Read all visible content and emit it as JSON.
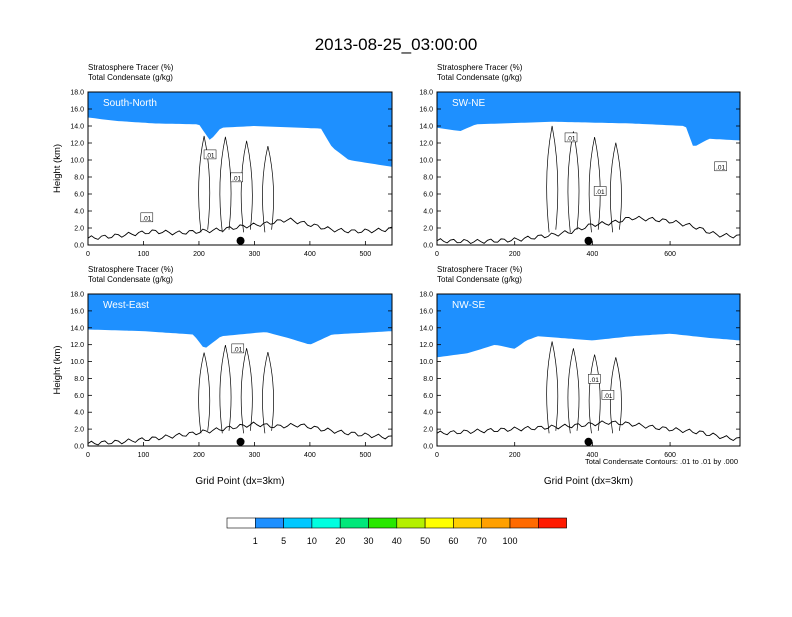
{
  "title": "2013-08-25_03:00:00",
  "colors": {
    "levels": [
      "#ffffff",
      "#1e90ff",
      "#00c8ff",
      "#00ffe0",
      "#00e87a",
      "#28e800",
      "#b4f000",
      "#ffff00",
      "#ffd000",
      "#ffa000",
      "#ff6a00",
      "#ff1a00"
    ],
    "terrain": "#000000"
  },
  "colorbar": {
    "labels": [
      "1",
      "5",
      "10",
      "20",
      "30",
      "40",
      "50",
      "60",
      "70",
      "100"
    ]
  },
  "footnote": "Total Condensate Contours: .01 to .01 by .000",
  "chart_data": [
    {
      "type": "area",
      "id": "sn",
      "label": "South-North",
      "subtitle1": "Stratosphere Tracer   (%)",
      "subtitle2": "Total Condensate   (g/kg)",
      "ylabel": "Height (km)",
      "xlabel": "",
      "xlim": [
        0,
        548
      ],
      "ylim": [
        0,
        18
      ],
      "xticks": [
        "0",
        "100",
        "200",
        "300",
        "400",
        "500"
      ],
      "xtick_values": [
        0,
        100,
        200,
        300,
        400,
        500
      ],
      "yticks": [
        "0.0",
        "2.0",
        "4.0",
        "6.0",
        "8.0",
        "10.0",
        "12.0",
        "14.0",
        "16.0",
        "18.0"
      ],
      "marker_x": 275,
      "contour_label": ".01",
      "contour_label_points": [
        [
          220,
          10.6
        ],
        [
          268,
          7.9
        ],
        [
          106,
          3.2
        ]
      ],
      "tropo_points": [
        [
          0,
          15.0
        ],
        [
          50,
          14.6
        ],
        [
          120,
          14.3
        ],
        [
          200,
          14.2
        ],
        [
          220,
          12.3
        ],
        [
          240,
          13.8
        ],
        [
          300,
          14.0
        ],
        [
          420,
          13.7
        ],
        [
          440,
          11.5
        ],
        [
          470,
          10.0
        ],
        [
          548,
          9.2
        ]
      ],
      "terrain_points": [
        [
          0,
          0.8
        ],
        [
          40,
          1.0
        ],
        [
          80,
          1.3
        ],
        [
          120,
          1.6
        ],
        [
          160,
          1.4
        ],
        [
          200,
          1.6
        ],
        [
          240,
          1.8
        ],
        [
          280,
          2.2
        ],
        [
          320,
          2.5
        ],
        [
          360,
          3.0
        ],
        [
          400,
          2.4
        ],
        [
          440,
          1.8
        ],
        [
          480,
          1.6
        ],
        [
          520,
          1.7
        ],
        [
          548,
          1.9
        ]
      ]
    },
    {
      "type": "area",
      "id": "swne",
      "label": "SW-NE",
      "subtitle1": "Stratosphere Tracer   (%)",
      "subtitle2": "Total Condensate   (g/kg)",
      "ylabel": "",
      "xlabel": "",
      "xlim": [
        0,
        780
      ],
      "ylim": [
        0,
        18
      ],
      "xticks": [
        "0",
        "200",
        "400",
        "600"
      ],
      "xtick_values": [
        0,
        200,
        400,
        600
      ],
      "yticks": [
        "0.0",
        "2.0",
        "4.0",
        "6.0",
        "8.0",
        "10.0",
        "12.0",
        "14.0",
        "16.0",
        "18.0"
      ],
      "marker_x": 390,
      "contour_label": ".01",
      "contour_label_points": [
        [
          345,
          12.6
        ],
        [
          420,
          6.3
        ],
        [
          730,
          9.2
        ]
      ],
      "tropo_points": [
        [
          0,
          13.8
        ],
        [
          60,
          13.4
        ],
        [
          100,
          14.2
        ],
        [
          300,
          14.5
        ],
        [
          500,
          14.3
        ],
        [
          640,
          14.0
        ],
        [
          660,
          11.5
        ],
        [
          700,
          12.5
        ],
        [
          780,
          12.3
        ]
      ],
      "terrain_points": [
        [
          0,
          0.5
        ],
        [
          100,
          0.4
        ],
        [
          200,
          0.6
        ],
        [
          300,
          1.2
        ],
        [
          350,
          1.6
        ],
        [
          400,
          2.4
        ],
        [
          450,
          2.6
        ],
        [
          500,
          3.2
        ],
        [
          560,
          3.0
        ],
        [
          600,
          2.8
        ],
        [
          660,
          2.2
        ],
        [
          720,
          1.2
        ],
        [
          780,
          1.0
        ]
      ]
    },
    {
      "type": "area",
      "id": "we",
      "label": "West-East",
      "subtitle1": "Stratosphere Tracer   (%)",
      "subtitle2": "Total Condensate   (g/kg)",
      "ylabel": "Height (km)",
      "xlabel": "Grid Point (dx=3km)",
      "xlim": [
        0,
        548
      ],
      "ylim": [
        0,
        18
      ],
      "xticks": [
        "0",
        "100",
        "200",
        "300",
        "400",
        "500"
      ],
      "xtick_values": [
        0,
        100,
        200,
        300,
        400,
        500
      ],
      "yticks": [
        "0.0",
        "2.0",
        "4.0",
        "6.0",
        "8.0",
        "10.0",
        "12.0",
        "14.0",
        "16.0",
        "18.0"
      ],
      "marker_x": 275,
      "contour_label": ".01",
      "contour_label_points": [
        [
          270,
          11.5
        ]
      ],
      "tropo_points": [
        [
          0,
          13.8
        ],
        [
          100,
          13.6
        ],
        [
          190,
          13.2
        ],
        [
          210,
          11.5
        ],
        [
          240,
          13.0
        ],
        [
          320,
          13.5
        ],
        [
          360,
          12.8
        ],
        [
          400,
          12.0
        ],
        [
          440,
          13.2
        ],
        [
          548,
          13.6
        ]
      ],
      "terrain_points": [
        [
          0,
          0.3
        ],
        [
          60,
          0.5
        ],
        [
          120,
          0.9
        ],
        [
          180,
          1.4
        ],
        [
          220,
          1.8
        ],
        [
          260,
          2.2
        ],
        [
          300,
          2.6
        ],
        [
          340,
          2.3
        ],
        [
          380,
          2.5
        ],
        [
          420,
          2.0
        ],
        [
          460,
          1.6
        ],
        [
          500,
          1.3
        ],
        [
          548,
          1.0
        ]
      ]
    },
    {
      "type": "area",
      "id": "nwse",
      "label": "NW-SE",
      "subtitle1": "Stratosphere Tracer   (%)",
      "subtitle2": "Total Condensate   (g/kg)",
      "ylabel": "",
      "xlabel": "Grid Point (dx=3km)",
      "xlim": [
        0,
        780
      ],
      "ylim": [
        0,
        18
      ],
      "xticks": [
        "0",
        "200",
        "400",
        "600"
      ],
      "xtick_values": [
        0,
        200,
        400,
        600
      ],
      "yticks": [
        "0.0",
        "2.0",
        "4.0",
        "6.0",
        "8.0",
        "10.0",
        "12.0",
        "14.0",
        "16.0",
        "18.0"
      ],
      "marker_x": 390,
      "contour_label": ".01",
      "contour_label_points": [
        [
          405,
          7.9
        ],
        [
          440,
          6.0
        ]
      ],
      "tropo_points": [
        [
          0,
          10.5
        ],
        [
          80,
          11.0
        ],
        [
          150,
          12.0
        ],
        [
          200,
          11.5
        ],
        [
          230,
          12.5
        ],
        [
          260,
          13.0
        ],
        [
          400,
          12.5
        ],
        [
          500,
          13.0
        ],
        [
          600,
          13.3
        ],
        [
          700,
          12.8
        ],
        [
          780,
          12.5
        ]
      ],
      "terrain_points": [
        [
          0,
          1.5
        ],
        [
          80,
          1.7
        ],
        [
          160,
          1.9
        ],
        [
          240,
          2.1
        ],
        [
          320,
          2.3
        ],
        [
          380,
          2.5
        ],
        [
          440,
          2.8
        ],
        [
          500,
          2.6
        ],
        [
          560,
          2.2
        ],
        [
          620,
          1.9
        ],
        [
          680,
          1.6
        ],
        [
          740,
          1.0
        ],
        [
          780,
          0.8
        ]
      ]
    }
  ]
}
